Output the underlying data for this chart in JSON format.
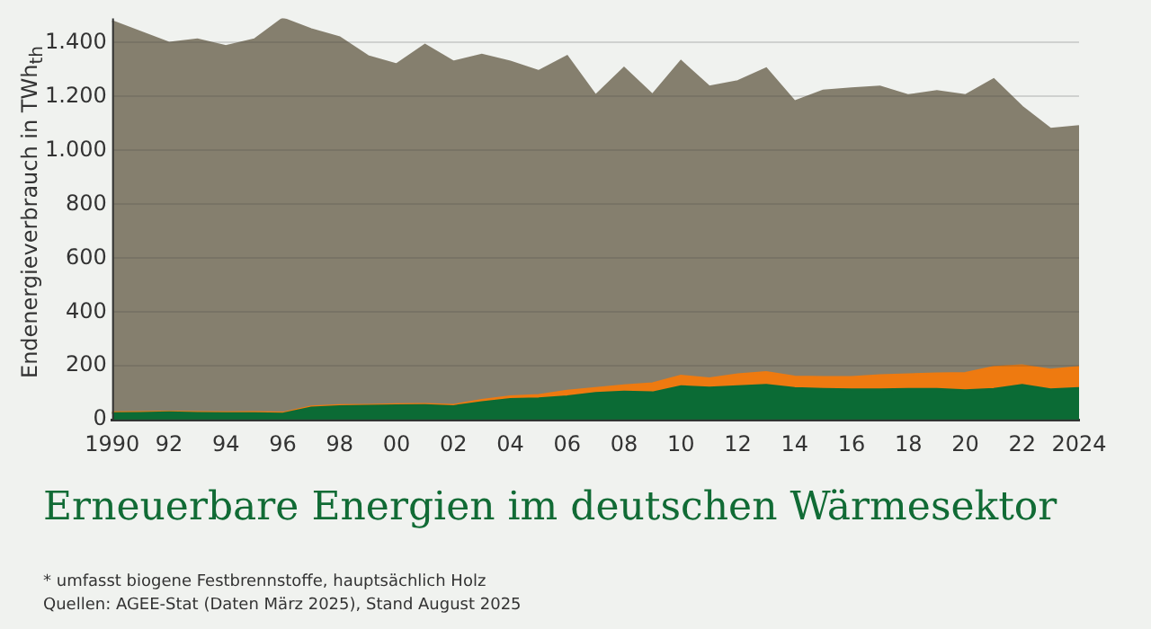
{
  "chart_data": {
    "type": "area",
    "stacked": true,
    "title": "Erneuerbare Energien im deutschen Wärmesektor",
    "ylabel": "Endenergieverbrauch in TWh$_{th}$",
    "annotations": [
      "* umfasst biogene Festbrennstoffe, hauptsächlich Holz",
      "Quellen: AGEE-Stat (Daten März 2025), Stand August 2025"
    ],
    "categories": [
      "1990",
      null,
      "92",
      null,
      "94",
      null,
      "96",
      null,
      "98",
      null,
      "00",
      null,
      "02",
      null,
      "04",
      null,
      "06",
      null,
      "08",
      null,
      "10",
      null,
      "12",
      null,
      "14",
      null,
      "16",
      null,
      "18",
      null,
      "20",
      null,
      "22",
      null,
      "2024"
    ],
    "series": [
      {
        "color": "#0b6b35",
        "values": [
          25,
          26,
          28,
          26,
          25,
          25,
          23,
          46,
          51,
          52,
          54,
          55,
          51,
          66,
          77,
          80,
          87,
          100,
          105,
          102,
          125,
          120,
          125,
          130,
          118,
          115,
          113,
          113,
          115,
          115,
          110,
          115,
          130,
          113,
          118
        ]
      },
      {
        "color": "#ee7a10",
        "values": [
          3,
          3,
          3,
          3,
          3,
          4,
          4,
          4,
          4,
          4,
          4,
          4,
          5,
          8,
          10,
          12,
          21,
          18,
          23,
          34,
          39,
          34,
          44,
          47,
          43,
          44,
          46,
          53,
          54,
          57,
          64,
          82,
          72,
          74,
          79
        ]
      },
      {
        "color": "#857f6e",
        "values": [
          1452,
          1411,
          1369,
          1383,
          1359,
          1383,
          1463,
          1400,
          1365,
          1294,
          1262,
          1333,
          1274,
          1281,
          1243,
          1203,
          1242,
          1087,
          1179,
          1071,
          1168,
          1083,
          1088,
          1128,
          1021,
          1063,
          1071,
          1071,
          1036,
          1048,
          1031,
          1068,
          960,
          893,
          893
        ]
      }
    ],
    "ylim": [
      0,
      1490
    ],
    "yticks": [
      0,
      200,
      400,
      600,
      800,
      {
        "value": 1000,
        "label": "1.000"
      },
      {
        "value": 1200,
        "label": "1.200"
      },
      {
        "value": 1400,
        "label": "1.400"
      }
    ],
    "grid": "y"
  }
}
